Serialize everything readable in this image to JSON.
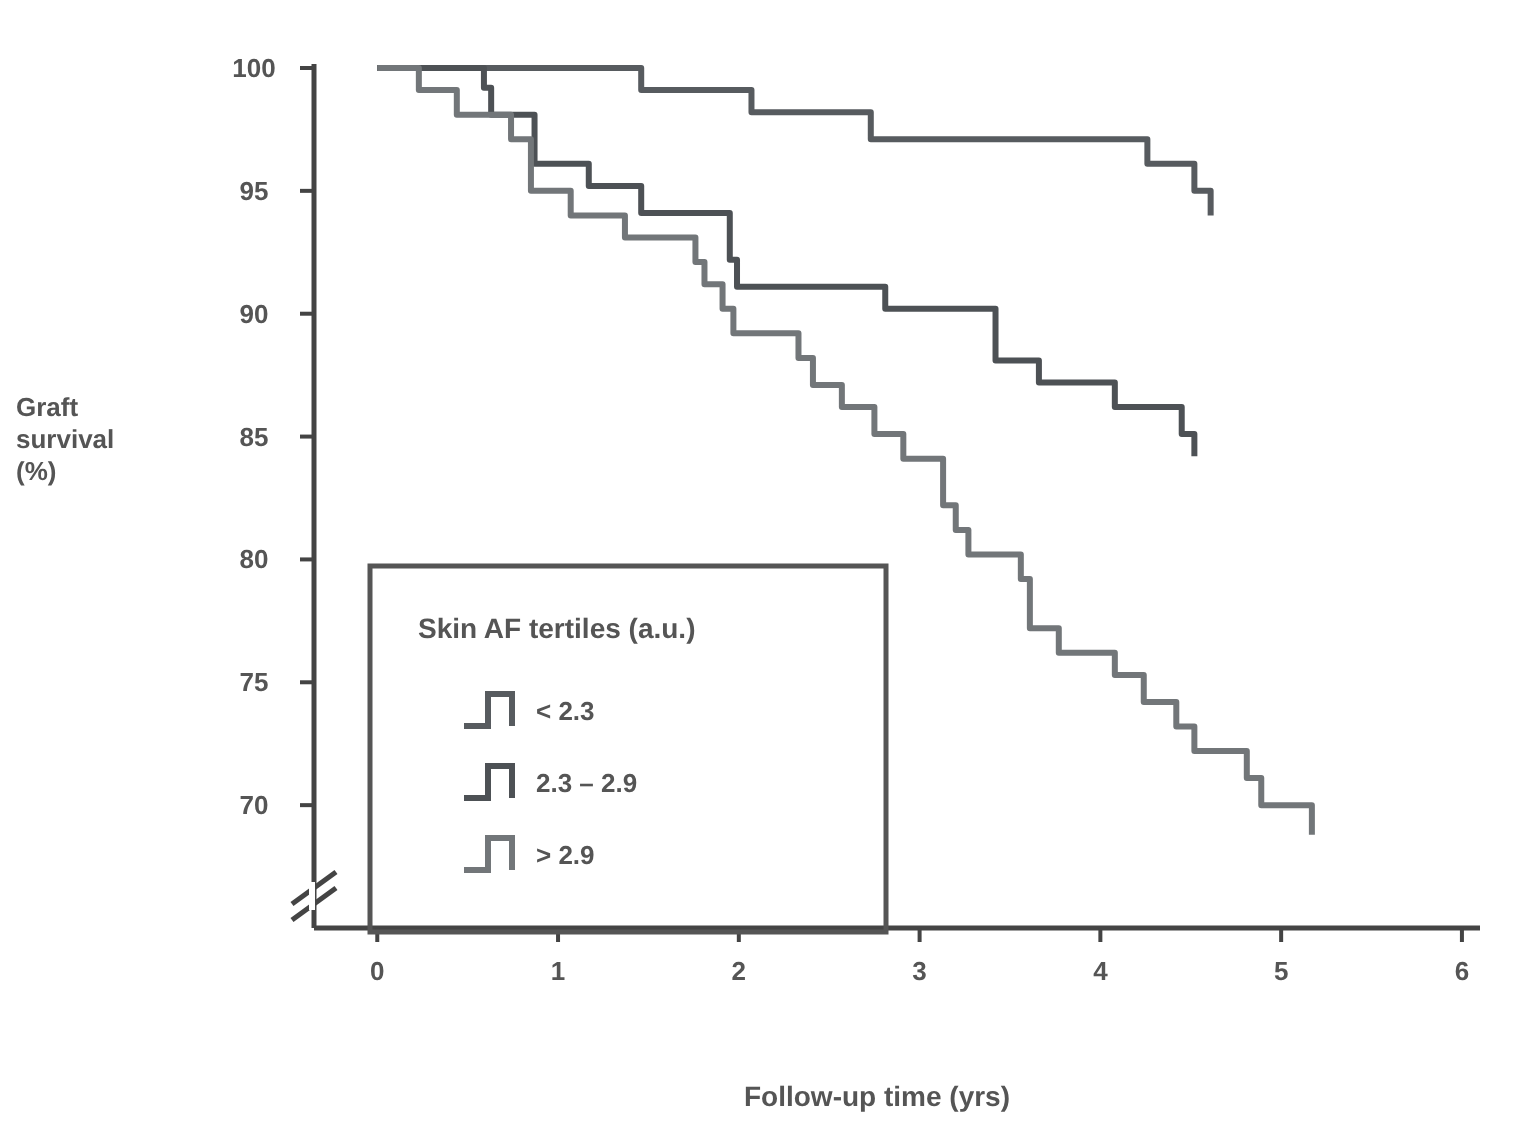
{
  "chart_data": {
    "type": "step",
    "xlabel": "Follow-up time (yrs)",
    "ylabel": "Graft survival (%)",
    "legend_title": "Skin AF tertiles (a.u.)",
    "legend": "bottom left",
    "grid": false,
    "xlim": [
      -0.35,
      6.1
    ],
    "ylim": [
      65,
      100
    ],
    "xticks": [
      0,
      1,
      2,
      3,
      4,
      5,
      6
    ],
    "yticks": [
      70,
      75,
      80,
      85,
      90,
      95,
      100
    ],
    "series": [
      {
        "name": "< 2.3",
        "color": "#575b5f",
        "x": [
          0,
          1.46,
          2.07,
          2.73,
          4.26,
          4.52,
          4.61
        ],
        "values": [
          100,
          99.1,
          98.2,
          97.1,
          96.1,
          95.0,
          94.0
        ]
      },
      {
        "name": "2.3 – 2.9",
        "color": "#4d5155",
        "x": [
          0,
          0.59,
          0.63,
          0.87,
          1.17,
          1.46,
          1.95,
          1.99,
          2.81,
          3.42,
          3.66,
          4.08,
          4.45,
          4.52
        ],
        "values": [
          100,
          99.2,
          98.1,
          96.1,
          95.2,
          94.1,
          92.2,
          91.1,
          90.2,
          88.1,
          87.2,
          86.2,
          85.1,
          84.2
        ]
      },
      {
        "name": "> 2.9",
        "color": "#727679",
        "x": [
          0,
          0.23,
          0.44,
          0.74,
          0.85,
          1.07,
          1.37,
          1.76,
          1.81,
          1.91,
          1.97,
          2.33,
          2.41,
          2.57,
          2.75,
          2.91,
          3.13,
          3.2,
          3.27,
          3.56,
          3.61,
          3.77,
          4.08,
          4.24,
          4.42,
          4.52,
          4.81,
          4.89,
          5.17
        ],
        "values": [
          100,
          99.1,
          98.1,
          97.1,
          95.0,
          94.0,
          93.1,
          92.1,
          91.2,
          90.2,
          89.2,
          88.2,
          87.1,
          86.2,
          85.1,
          84.1,
          82.2,
          81.2,
          80.2,
          79.2,
          77.2,
          76.2,
          75.3,
          74.2,
          73.2,
          72.2,
          71.1,
          70.0,
          68.8
        ]
      }
    ]
  }
}
